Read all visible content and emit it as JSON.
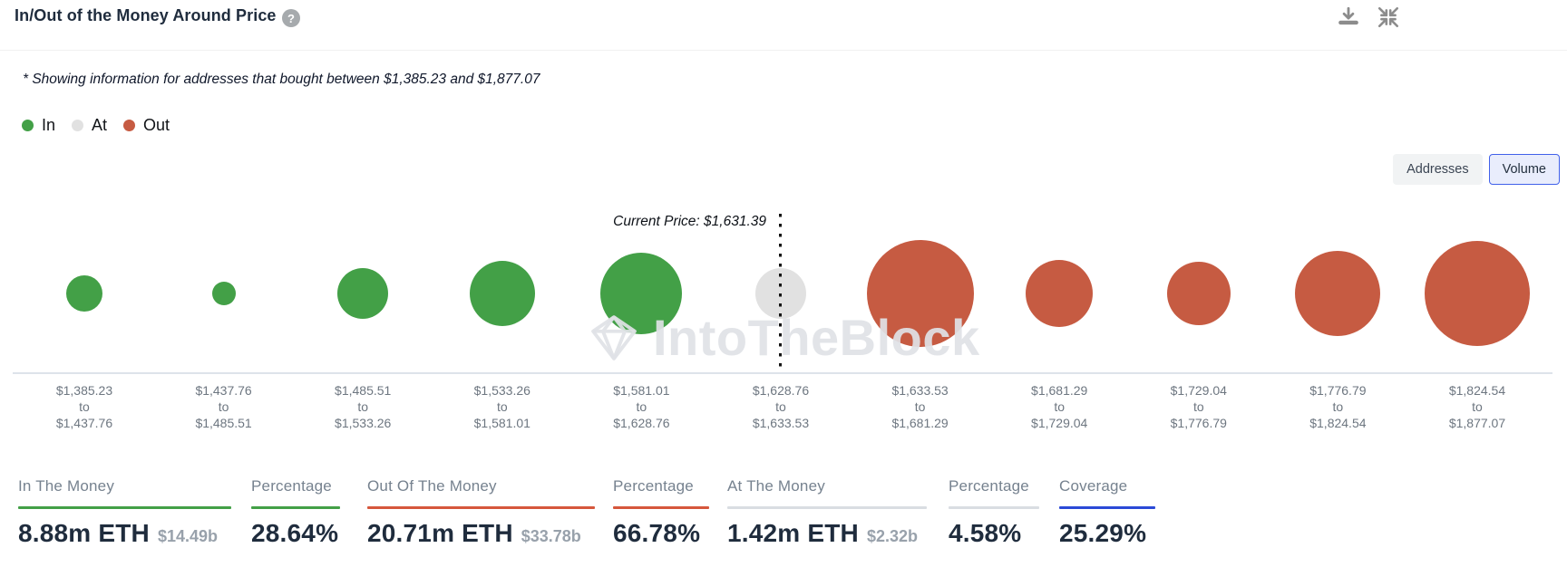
{
  "header": {
    "title": "In/Out of the Money Around Price",
    "help_glyph": "?"
  },
  "subtitle": "* Showing information for addresses that bought between $1,385.23 and $1,877.07",
  "legend": {
    "items": [
      {
        "label": "In",
        "color": "#43a047"
      },
      {
        "label": "At",
        "color": "#e1e1e1"
      },
      {
        "label": "Out",
        "color": "#c65b42"
      }
    ]
  },
  "toggle": {
    "options": [
      {
        "label": "Addresses",
        "selected": false
      },
      {
        "label": "Volume",
        "selected": true
      }
    ]
  },
  "watermark": {
    "text": "IntoTheBlock"
  },
  "chart_data": {
    "type": "bubble",
    "title": "In/Out of the Money Around Price",
    "current_price_label": "Current Price: $1,631.39",
    "current_price": 1631.39,
    "range_separator": "to",
    "legend_position": "top-left",
    "x_axis": "price ranges (USD)",
    "size_encoding": "volume of ETH bought in range (bubble area)",
    "buckets": [
      {
        "range_from": "$1,385.23",
        "range_to": "$1,437.76",
        "status": "in",
        "radius_px": 20
      },
      {
        "range_from": "$1,437.76",
        "range_to": "$1,485.51",
        "status": "in",
        "radius_px": 13
      },
      {
        "range_from": "$1,485.51",
        "range_to": "$1,533.26",
        "status": "in",
        "radius_px": 28
      },
      {
        "range_from": "$1,533.26",
        "range_to": "$1,581.01",
        "status": "in",
        "radius_px": 36
      },
      {
        "range_from": "$1,581.01",
        "range_to": "$1,628.76",
        "status": "in",
        "radius_px": 45
      },
      {
        "range_from": "$1,628.76",
        "range_to": "$1,633.53",
        "status": "at",
        "radius_px": 28
      },
      {
        "range_from": "$1,633.53",
        "range_to": "$1,681.29",
        "status": "out",
        "radius_px": 59
      },
      {
        "range_from": "$1,681.29",
        "range_to": "$1,729.04",
        "status": "out",
        "radius_px": 37
      },
      {
        "range_from": "$1,729.04",
        "range_to": "$1,776.79",
        "status": "out",
        "radius_px": 35
      },
      {
        "range_from": "$1,776.79",
        "range_to": "$1,824.54",
        "status": "out",
        "radius_px": 47
      },
      {
        "range_from": "$1,824.54",
        "range_to": "$1,877.07",
        "status": "out",
        "radius_px": 58
      }
    ],
    "status_colors": {
      "in": "#43a047",
      "at": "#e1e1e1",
      "out": "#c65b42"
    }
  },
  "stats": {
    "items": [
      {
        "label": "In The Money",
        "value": "8.88m ETH",
        "sub": "$14.49b",
        "line_color": "#43a047"
      },
      {
        "label": "Percentage",
        "value": "28.64%",
        "sub": "",
        "line_color": "#43a047"
      },
      {
        "label": "Out Of The Money",
        "value": "20.71m ETH",
        "sub": "$33.78b",
        "line_color": "#d6573c"
      },
      {
        "label": "Percentage",
        "value": "66.78%",
        "sub": "",
        "line_color": "#d6573c"
      },
      {
        "label": "At The Money",
        "value": "1.42m ETH",
        "sub": "$2.32b",
        "line_color": "#d9dde2"
      },
      {
        "label": "Percentage",
        "value": "4.58%",
        "sub": "",
        "line_color": "#d9dde2"
      },
      {
        "label": "Coverage",
        "value": "25.29%",
        "sub": "",
        "line_color": "#2b4ad7"
      }
    ]
  }
}
